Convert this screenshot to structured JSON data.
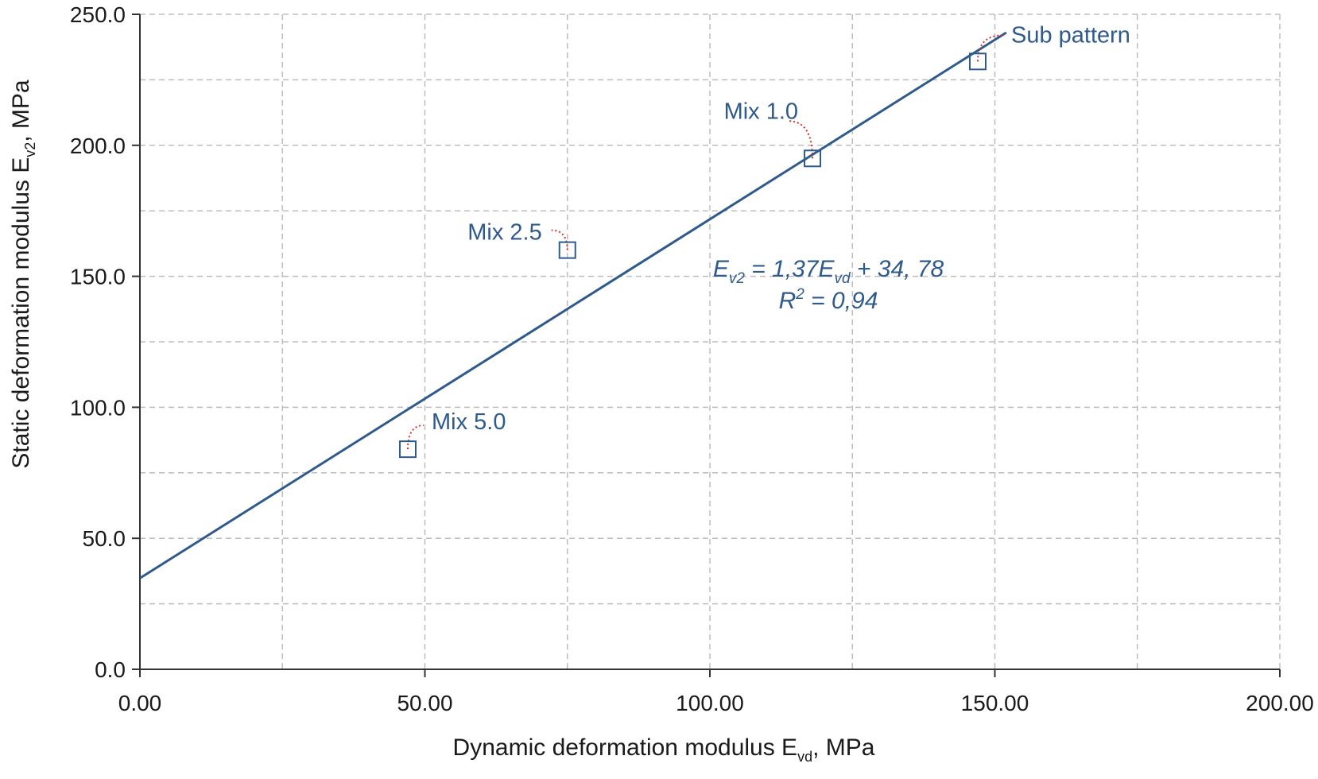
{
  "chart_data": {
    "type": "scatter",
    "x_ticks": [
      "0.00",
      "50.00",
      "100.00",
      "150.00",
      "200.00"
    ],
    "y_ticks": [
      "0.0",
      "50.0",
      "100.0",
      "150.0",
      "200.0",
      "250.0"
    ],
    "xlim": [
      0,
      200
    ],
    "ylim": [
      0,
      250
    ],
    "x_minor_grid_step": 25,
    "y_minor_grid_step": 25,
    "grid": true,
    "xlabel": {
      "main": "Dynamic deformation modulus E",
      "sub": "vd",
      "suffix": ", MPa"
    },
    "ylabel": {
      "main": "Static deformation modulus E",
      "sub": "v2",
      "suffix": ", MPa"
    },
    "points": [
      {
        "label": "Mix 5.0",
        "x": 47,
        "y": 84
      },
      {
        "label": "Mix 2.5",
        "x": 75,
        "y": 160
      },
      {
        "label": "Mix 1.0",
        "x": 118,
        "y": 195
      },
      {
        "label": "Sub pattern",
        "x": 147,
        "y": 232
      }
    ],
    "trendline": {
      "slope": 1.37,
      "intercept": 34.78,
      "x_start": 0,
      "x_end": 152
    },
    "equation": {
      "line1": {
        "e": "E",
        "sub1": "v2",
        "mid": " = 1,37E",
        "sub2": "vd",
        "tail": " + 34, 78"
      },
      "line2": {
        "r": "R",
        "sup": "2",
        "tail": " = 0,94"
      }
    },
    "colors": {
      "series": "#2f5a8c",
      "leader": "#d0312d",
      "grid": "#bdbdbd",
      "axis": "#333333",
      "text": "#1a1a1a"
    }
  }
}
